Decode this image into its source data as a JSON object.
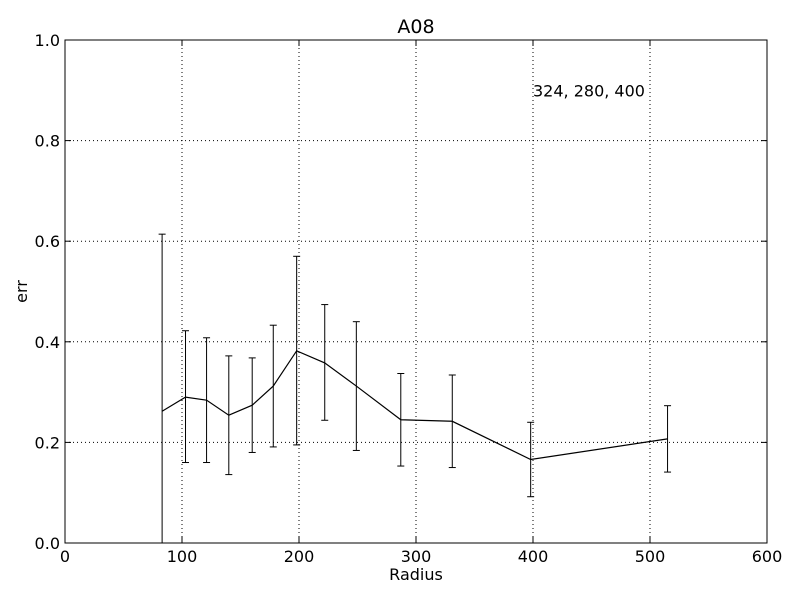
{
  "chart_data": {
    "type": "line",
    "title": "A08",
    "xlabel": "Radius",
    "ylabel": "err",
    "xlim": [
      0,
      600
    ],
    "ylim": [
      0.0,
      1.0
    ],
    "grid": true,
    "grid_style": "dotted",
    "x_ticks": [
      "0",
      "100",
      "200",
      "300",
      "400",
      "500",
      "600"
    ],
    "y_ticks": [
      "0.0",
      "0.2",
      "0.4",
      "0.6",
      "0.8",
      "1.0"
    ],
    "annotation": "324, 280, 400",
    "color": "#000000",
    "series": [
      {
        "x": [
          83,
          103,
          121,
          140,
          160,
          178,
          198,
          222,
          249,
          287,
          331,
          398,
          515
        ],
        "y": [
          0.262,
          0.29,
          0.284,
          0.254,
          0.274,
          0.312,
          0.382,
          0.358,
          0.312,
          0.245,
          0.242,
          0.166,
          0.207
        ],
        "err_low": [
          0.262,
          0.13,
          0.124,
          0.118,
          0.094,
          0.121,
          0.187,
          0.114,
          0.128,
          0.092,
          0.092,
          0.074,
          0.066
        ],
        "err_high": [
          0.352,
          0.132,
          0.124,
          0.118,
          0.094,
          0.121,
          0.188,
          0.116,
          0.128,
          0.092,
          0.092,
          0.074,
          0.066
        ]
      }
    ]
  }
}
